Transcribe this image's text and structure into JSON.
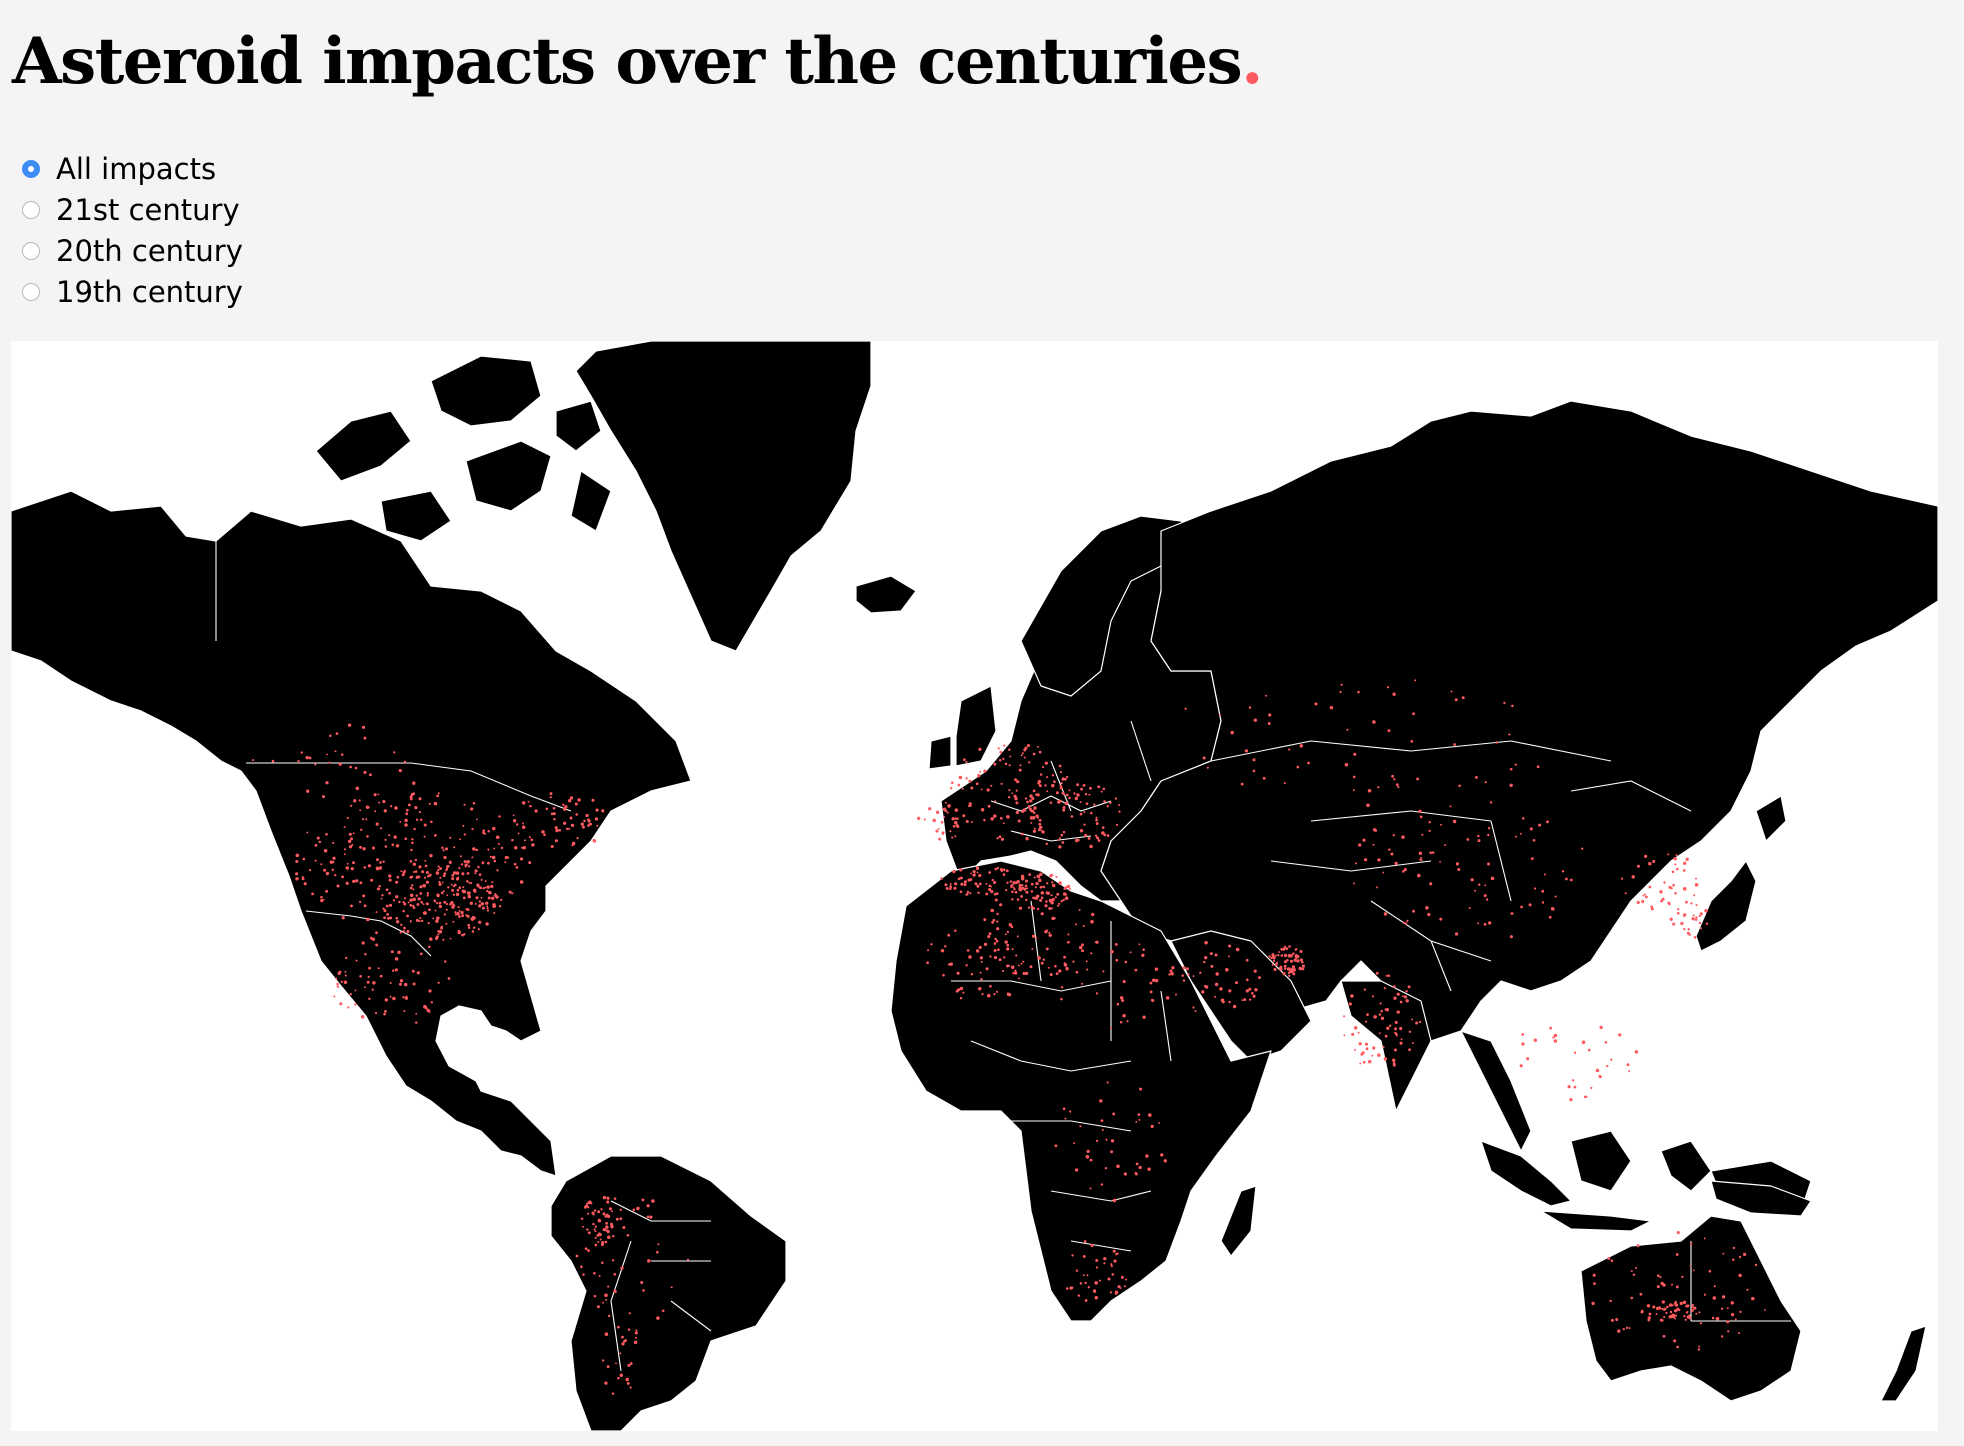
{
  "title": {
    "text": "Asteroid impacts over the centuries",
    "dot": "."
  },
  "filters": [
    {
      "label": "All impacts",
      "selected": true
    },
    {
      "label": "21st century",
      "selected": false
    },
    {
      "label": "20th century",
      "selected": false
    },
    {
      "label": "19th century",
      "selected": false
    }
  ],
  "map": {
    "projection": "mercator",
    "land_color": "#000000",
    "ocean_color": "#ffffff",
    "border_color": "#ffffff",
    "impact_color": "#ff5a5f",
    "active_filter": "All impacts"
  },
  "colors": {
    "accent": "#ff5a5f",
    "radio_selected": "#3d8df5",
    "page_background": "#f4f4f4"
  }
}
